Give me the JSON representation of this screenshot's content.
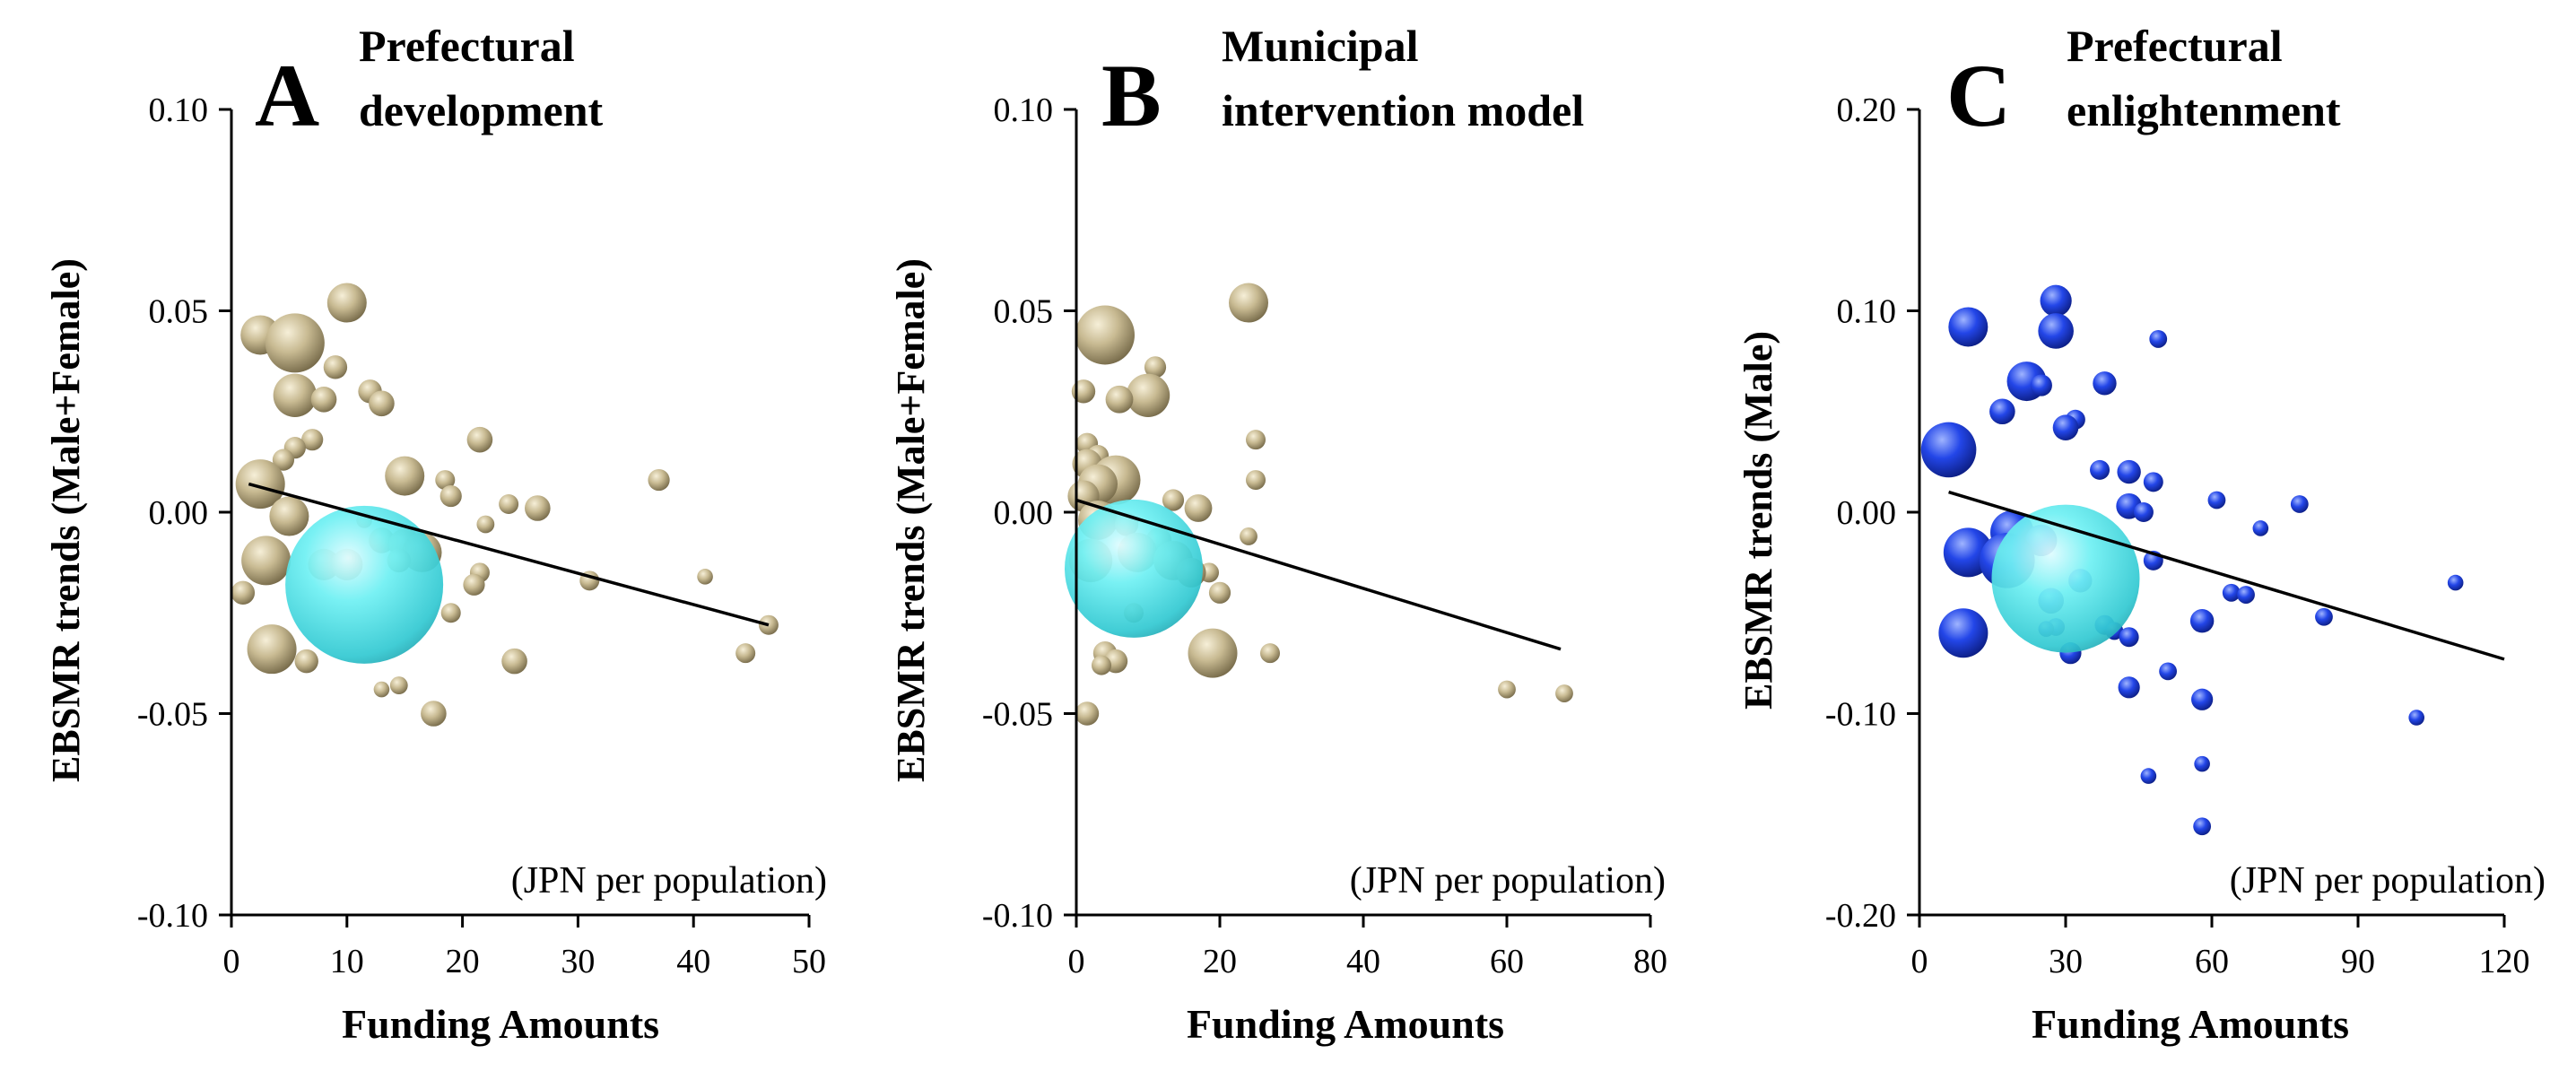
{
  "chart_data": [
    {
      "type": "scatter",
      "panel_letter": "A",
      "title": [
        "Prefectural",
        "development"
      ],
      "xlabel": "Funding Amounts",
      "ylabel": "EBSMR trends (Male+Female)",
      "annotation": "(JPN per population)",
      "xlim": [
        0,
        50
      ],
      "ylim": [
        -0.1,
        0.1
      ],
      "xticks": [
        0,
        10,
        20,
        30,
        40,
        50
      ],
      "yticks": [
        -0.1,
        -0.05,
        0,
        0.05,
        0.1
      ],
      "xtick_labels": [
        "0",
        "10",
        "20",
        "30",
        "40",
        "50"
      ],
      "ytick_labels": [
        "-0.10",
        "-0.05",
        "0.00",
        "0.05",
        "0.10"
      ],
      "trend_line": {
        "x": [
          1.5,
          46.5
        ],
        "y": [
          0.007,
          -0.028
        ]
      },
      "colors": {
        "bubble": "#c2b48e",
        "big_bubble": "#55e0e6",
        "line": "#000000"
      },
      "points": [
        {
          "x": 10.0,
          "y": 0.052,
          "size": 2.0
        },
        {
          "x": 2.5,
          "y": 0.044,
          "size": 2.0
        },
        {
          "x": 5.5,
          "y": 0.042,
          "size": 3.0
        },
        {
          "x": 9.0,
          "y": 0.036,
          "size": 1.2
        },
        {
          "x": 5.5,
          "y": 0.029,
          "size": 2.2
        },
        {
          "x": 8.0,
          "y": 0.028,
          "size": 1.3
        },
        {
          "x": 12.0,
          "y": 0.03,
          "size": 1.2
        },
        {
          "x": 13.0,
          "y": 0.027,
          "size": 1.3
        },
        {
          "x": 7.0,
          "y": 0.018,
          "size": 1.1
        },
        {
          "x": 5.5,
          "y": 0.016,
          "size": 1.1
        },
        {
          "x": 4.5,
          "y": 0.013,
          "size": 1.1
        },
        {
          "x": 21.5,
          "y": 0.018,
          "size": 1.3
        },
        {
          "x": 2.5,
          "y": 0.007,
          "size": 2.5
        },
        {
          "x": 15.0,
          "y": 0.009,
          "size": 2.0
        },
        {
          "x": 18.5,
          "y": 0.008,
          "size": 1.0
        },
        {
          "x": 19.0,
          "y": 0.004,
          "size": 1.1
        },
        {
          "x": 24.0,
          "y": 0.002,
          "size": 1.0
        },
        {
          "x": 26.5,
          "y": 0.001,
          "size": 1.3
        },
        {
          "x": 37.0,
          "y": 0.008,
          "size": 1.1
        },
        {
          "x": 5.0,
          "y": -0.001,
          "size": 2.0
        },
        {
          "x": 11.5,
          "y": -0.002,
          "size": 0.8
        },
        {
          "x": 22.0,
          "y": -0.003,
          "size": 0.9
        },
        {
          "x": 13.0,
          "y": -0.007,
          "size": 1.3
        },
        {
          "x": 15.0,
          "y": -0.008,
          "size": 1.6
        },
        {
          "x": 16.5,
          "y": -0.01,
          "size": 2.0
        },
        {
          "x": 14.5,
          "y": -0.012,
          "size": 1.2
        },
        {
          "x": 3.0,
          "y": -0.012,
          "size": 2.5
        },
        {
          "x": 8.0,
          "y": -0.013,
          "size": 1.6
        },
        {
          "x": 10.0,
          "y": -0.013,
          "size": 1.6
        },
        {
          "x": 21.5,
          "y": -0.015,
          "size": 1.0
        },
        {
          "x": 21.0,
          "y": -0.018,
          "size": 1.1
        },
        {
          "x": 31.0,
          "y": -0.017,
          "size": 1.0
        },
        {
          "x": 41.0,
          "y": -0.016,
          "size": 0.8
        },
        {
          "x": 1.0,
          "y": -0.02,
          "size": 1.2
        },
        {
          "x": 19.0,
          "y": -0.025,
          "size": 1.0
        },
        {
          "x": 46.5,
          "y": -0.028,
          "size": 1.0
        },
        {
          "x": 44.5,
          "y": -0.035,
          "size": 1.0
        },
        {
          "x": 3.5,
          "y": -0.034,
          "size": 2.5
        },
        {
          "x": 6.5,
          "y": -0.037,
          "size": 1.2
        },
        {
          "x": 24.5,
          "y": -0.037,
          "size": 1.3
        },
        {
          "x": 14.5,
          "y": -0.043,
          "size": 0.9
        },
        {
          "x": 13.0,
          "y": -0.044,
          "size": 0.8
        },
        {
          "x": 17.5,
          "y": -0.05,
          "size": 1.3
        }
      ],
      "big_points": [
        {
          "x": 11.5,
          "y": -0.018,
          "size": 8.0
        }
      ]
    },
    {
      "type": "scatter",
      "panel_letter": "B",
      "title": [
        "Municipal",
        "intervention model"
      ],
      "xlabel": "Funding Amounts",
      "ylabel": "EBSMR trends (Male+Female)",
      "annotation": "(JPN per population)",
      "xlim": [
        0,
        80
      ],
      "ylim": [
        -0.1,
        0.1
      ],
      "xticks": [
        0,
        20,
        40,
        60,
        80
      ],
      "yticks": [
        -0.1,
        -0.05,
        0,
        0.05,
        0.1
      ],
      "xtick_labels": [
        "0",
        "20",
        "40",
        "60",
        "80"
      ],
      "ytick_labels": [
        "-0.10",
        "-0.05",
        "0.00",
        "0.05",
        "0.10"
      ],
      "trend_line": {
        "x": [
          0,
          67.5
        ],
        "y": [
          0.003,
          -0.034
        ]
      },
      "colors": {
        "bubble": "#c2b48e",
        "big_bubble": "#55e0e6",
        "line": "#000000"
      },
      "points": [
        {
          "x": 24.0,
          "y": 0.052,
          "size": 2.0
        },
        {
          "x": 4.0,
          "y": 0.044,
          "size": 3.0
        },
        {
          "x": 11.0,
          "y": 0.036,
          "size": 1.1
        },
        {
          "x": 1.0,
          "y": 0.03,
          "size": 1.2
        },
        {
          "x": 10.0,
          "y": 0.029,
          "size": 2.2
        },
        {
          "x": 6.0,
          "y": 0.028,
          "size": 1.4
        },
        {
          "x": 25.0,
          "y": 0.018,
          "size": 1.0
        },
        {
          "x": 1.5,
          "y": 0.017,
          "size": 1.1
        },
        {
          "x": 3.0,
          "y": 0.014,
          "size": 1.1
        },
        {
          "x": 1.5,
          "y": 0.012,
          "size": 1.5
        },
        {
          "x": 25.0,
          "y": 0.008,
          "size": 1.0
        },
        {
          "x": 5.5,
          "y": 0.008,
          "size": 2.5
        },
        {
          "x": 3.0,
          "y": 0.007,
          "size": 2.0
        },
        {
          "x": 1.0,
          "y": 0.004,
          "size": 1.6
        },
        {
          "x": 13.5,
          "y": 0.003,
          "size": 1.1
        },
        {
          "x": 17.0,
          "y": 0.001,
          "size": 1.4
        },
        {
          "x": 3.0,
          "y": -0.002,
          "size": 2.0
        },
        {
          "x": 7.0,
          "y": -0.003,
          "size": 1.2
        },
        {
          "x": 24.0,
          "y": -0.006,
          "size": 0.9
        },
        {
          "x": 11.5,
          "y": -0.007,
          "size": 1.3
        },
        {
          "x": 8.5,
          "y": -0.01,
          "size": 2.0
        },
        {
          "x": 13.5,
          "y": -0.012,
          "size": 2.0
        },
        {
          "x": 2.0,
          "y": -0.012,
          "size": 2.2
        },
        {
          "x": 18.5,
          "y": -0.015,
          "size": 1.0
        },
        {
          "x": 16.0,
          "y": -0.015,
          "size": 1.5
        },
        {
          "x": 20.0,
          "y": -0.02,
          "size": 1.1
        },
        {
          "x": 8.0,
          "y": -0.025,
          "size": 1.0
        },
        {
          "x": 4.0,
          "y": -0.035,
          "size": 1.2
        },
        {
          "x": 5.5,
          "y": -0.037,
          "size": 1.2
        },
        {
          "x": 3.5,
          "y": -0.038,
          "size": 1.0
        },
        {
          "x": 19.0,
          "y": -0.035,
          "size": 2.5
        },
        {
          "x": 27.0,
          "y": -0.035,
          "size": 1.0
        },
        {
          "x": 60.0,
          "y": -0.044,
          "size": 0.9
        },
        {
          "x": 68.0,
          "y": -0.045,
          "size": 0.9
        },
        {
          "x": 1.5,
          "y": -0.05,
          "size": 1.2
        }
      ],
      "big_points": [
        {
          "x": 8.0,
          "y": -0.014,
          "size": 7.0
        }
      ]
    },
    {
      "type": "scatter",
      "panel_letter": "C",
      "title": [
        "Prefectural",
        "enlightenment"
      ],
      "xlabel": "Funding Amounts",
      "ylabel": "EBSMR trends (Male)",
      "annotation": "(JPN per population)",
      "xlim": [
        0,
        120
      ],
      "ylim": [
        -0.2,
        0.2
      ],
      "xticks": [
        0,
        30,
        60,
        90,
        120
      ],
      "yticks": [
        -0.2,
        -0.1,
        0,
        0.1,
        0.2
      ],
      "xtick_labels": [
        "0",
        "30",
        "60",
        "90",
        "120"
      ],
      "ytick_labels": [
        "-0.20",
        "-0.10",
        "0.00",
        "0.10",
        "0.20"
      ],
      "trend_line": {
        "x": [
          6,
          120
        ],
        "y": [
          0.01,
          -0.073
        ]
      },
      "colors": {
        "bubble": "#1f3fe0",
        "big_bubble": "#55e0e6",
        "line": "#000000"
      },
      "points": [
        {
          "x": 28,
          "y": 0.105,
          "size": 1.6
        },
        {
          "x": 10,
          "y": 0.092,
          "size": 2.0
        },
        {
          "x": 28,
          "y": 0.09,
          "size": 1.8
        },
        {
          "x": 49,
          "y": 0.086,
          "size": 0.9
        },
        {
          "x": 22,
          "y": 0.065,
          "size": 2.0
        },
        {
          "x": 25,
          "y": 0.063,
          "size": 1.1
        },
        {
          "x": 38,
          "y": 0.064,
          "size": 1.2
        },
        {
          "x": 17,
          "y": 0.05,
          "size": 1.3
        },
        {
          "x": 32,
          "y": 0.046,
          "size": 1.0
        },
        {
          "x": 30,
          "y": 0.042,
          "size": 1.3
        },
        {
          "x": 6,
          "y": 0.031,
          "size": 2.8
        },
        {
          "x": 37,
          "y": 0.021,
          "size": 1.0
        },
        {
          "x": 43,
          "y": 0.02,
          "size": 1.2
        },
        {
          "x": 48,
          "y": 0.015,
          "size": 1.0
        },
        {
          "x": 61,
          "y": 0.006,
          "size": 0.9
        },
        {
          "x": 78,
          "y": 0.004,
          "size": 0.9
        },
        {
          "x": 43,
          "y": 0.003,
          "size": 1.3
        },
        {
          "x": 46,
          "y": 0.0,
          "size": 1.0
        },
        {
          "x": 70,
          "y": -0.008,
          "size": 0.8
        },
        {
          "x": 19,
          "y": -0.01,
          "size": 2.2
        },
        {
          "x": 25,
          "y": -0.014,
          "size": 1.6
        },
        {
          "x": 10,
          "y": -0.02,
          "size": 2.5
        },
        {
          "x": 18,
          "y": -0.024,
          "size": 2.8
        },
        {
          "x": 48,
          "y": -0.024,
          "size": 1.0
        },
        {
          "x": 33,
          "y": -0.034,
          "size": 1.2
        },
        {
          "x": 110,
          "y": -0.035,
          "size": 0.8
        },
        {
          "x": 64,
          "y": -0.04,
          "size": 0.9
        },
        {
          "x": 67,
          "y": -0.041,
          "size": 0.9
        },
        {
          "x": 27,
          "y": -0.044,
          "size": 1.3
        },
        {
          "x": 58,
          "y": -0.054,
          "size": 1.2
        },
        {
          "x": 83,
          "y": -0.052,
          "size": 0.9
        },
        {
          "x": 38,
          "y": -0.056,
          "size": 1.0
        },
        {
          "x": 28,
          "y": -0.057,
          "size": 0.9
        },
        {
          "x": 26,
          "y": -0.058,
          "size": 0.8
        },
        {
          "x": 9,
          "y": -0.06,
          "size": 2.5
        },
        {
          "x": 40,
          "y": -0.059,
          "size": 0.9
        },
        {
          "x": 43,
          "y": -0.062,
          "size": 1.0
        },
        {
          "x": 31,
          "y": -0.07,
          "size": 1.1
        },
        {
          "x": 51,
          "y": -0.079,
          "size": 0.9
        },
        {
          "x": 43,
          "y": -0.087,
          "size": 1.1
        },
        {
          "x": 58,
          "y": -0.093,
          "size": 1.1
        },
        {
          "x": 102,
          "y": -0.102,
          "size": 0.8
        },
        {
          "x": 58,
          "y": -0.125,
          "size": 0.8
        },
        {
          "x": 47,
          "y": -0.131,
          "size": 0.8
        },
        {
          "x": 58,
          "y": -0.156,
          "size": 0.9
        }
      ],
      "big_points": [
        {
          "x": 30,
          "y": -0.033,
          "size": 7.5
        }
      ]
    }
  ]
}
